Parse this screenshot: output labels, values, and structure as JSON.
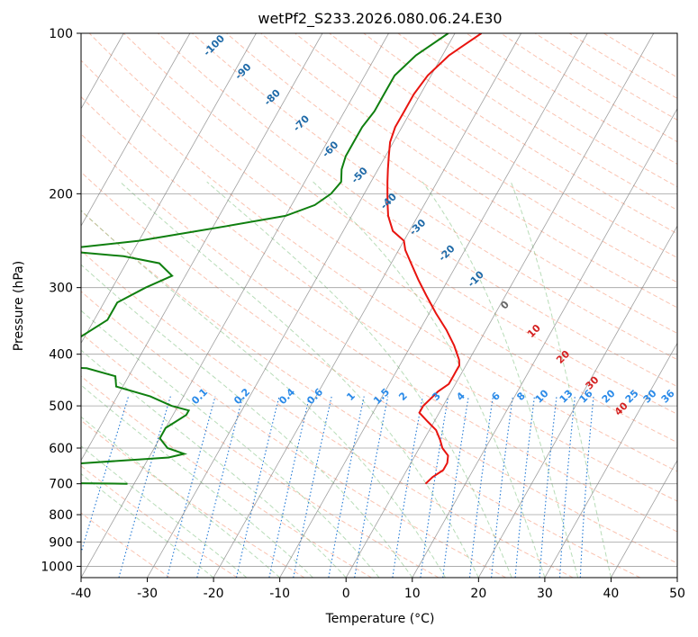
{
  "chart_data": {
    "type": "line",
    "subtype": "skew-t log-p sounding",
    "title": "wetPf2_S233.2026.080.06.24.E30",
    "xlabel": "Temperature (°C)",
    "ylabel": "Pressure (hPa)",
    "xlim": [
      -40,
      50
    ],
    "ylim": [
      1050,
      100
    ],
    "y_scale": "log",
    "grid": true,
    "x_ticks": [
      -40,
      -30,
      -20,
      -10,
      0,
      10,
      20,
      30,
      40,
      50
    ],
    "y_ticks": [
      1000,
      900,
      800,
      700,
      600,
      500,
      400,
      300,
      200,
      100
    ],
    "series": [
      {
        "role": "temperature",
        "color": "#e8140f",
        "points": [
          [
            -26,
            100
          ],
          [
            -29,
            110
          ],
          [
            -30.5,
            120
          ],
          [
            -31,
            130
          ],
          [
            -31,
            140
          ],
          [
            -31,
            150
          ],
          [
            -30.5,
            160
          ],
          [
            -29.5,
            170
          ],
          [
            -28.5,
            180
          ],
          [
            -27.5,
            190
          ],
          [
            -26.5,
            200
          ],
          [
            -25.5,
            210
          ],
          [
            -24.5,
            220
          ],
          [
            -22.5,
            235
          ],
          [
            -20,
            245
          ],
          [
            -19,
            255
          ],
          [
            -17,
            270
          ],
          [
            -14.5,
            290
          ],
          [
            -12,
            310
          ],
          [
            -9,
            335
          ],
          [
            -6,
            360
          ],
          [
            -3.5,
            385
          ],
          [
            -1.5,
            410
          ],
          [
            -1,
            420
          ],
          [
            -1,
            430
          ],
          [
            -1,
            440
          ],
          [
            -1,
            455
          ],
          [
            -2,
            470
          ],
          [
            -2.5,
            485
          ],
          [
            -3,
            500
          ],
          [
            -3,
            515
          ],
          [
            -1,
            535
          ],
          [
            1,
            555
          ],
          [
            2.5,
            580
          ],
          [
            3.5,
            600
          ],
          [
            5,
            620
          ],
          [
            5.5,
            640
          ],
          [
            5.5,
            660
          ],
          [
            4.5,
            680
          ],
          [
            4,
            700
          ]
        ]
      },
      {
        "role": "dewpoint",
        "color": "#0f7f0f",
        "points": [
          [
            -31,
            100
          ],
          [
            -34,
            110
          ],
          [
            -35.5,
            120
          ],
          [
            -35.5,
            130
          ],
          [
            -35.5,
            140
          ],
          [
            -36,
            150
          ],
          [
            -36,
            160
          ],
          [
            -36,
            170
          ],
          [
            -35.5,
            180
          ],
          [
            -34.5,
            190
          ],
          [
            -35,
            200
          ],
          [
            -36.5,
            210
          ],
          [
            -40,
            220
          ],
          [
            -48,
            230
          ],
          [
            -60,
            245
          ],
          [
            -72,
            255
          ],
          [
            -61,
            262
          ],
          [
            -55,
            270
          ],
          [
            -52,
            285
          ],
          [
            -55,
            300
          ],
          [
            -58,
            320
          ],
          [
            -58,
            345
          ],
          [
            -61,
            375
          ],
          [
            -70,
            390
          ],
          [
            -99,
            400
          ],
          [
            -108,
            405
          ],
          [
            -103,
            410
          ],
          [
            -72,
            415
          ],
          [
            -57,
            425
          ],
          [
            -52,
            440
          ],
          [
            -51,
            460
          ],
          [
            -45,
            480
          ],
          [
            -41,
            500
          ],
          [
            -38,
            510
          ],
          [
            -38,
            520
          ],
          [
            -39,
            535
          ],
          [
            -40,
            550
          ],
          [
            -40,
            575
          ],
          [
            -38,
            600
          ],
          [
            -35,
            615
          ],
          [
            -37,
            625
          ],
          [
            -53,
            645
          ],
          [
            -69,
            670
          ],
          [
            -77,
            680
          ],
          [
            -79,
            690
          ],
          [
            -65,
            695
          ],
          [
            -41,
            700
          ]
        ]
      }
    ],
    "dry_adiabat_labels": [
      "-100",
      "-90",
      "-80",
      "-70",
      "-60",
      "-50",
      "-40",
      "-30",
      "-20",
      "-10",
      "0",
      "10",
      "20",
      "30",
      "40"
    ],
    "mixing_ratio_labels": [
      "0.1",
      "0.2",
      "0.4",
      "0.6",
      "1",
      "1.5",
      "2",
      "3",
      "4",
      "6",
      "8",
      "10",
      "13",
      "16",
      "20",
      "25",
      "30",
      "36"
    ]
  },
  "colors": {
    "dry_adiabats": "#f47a53",
    "moist_adiabats": "#7dbf7d",
    "mixing_ratios": "#1f77d4",
    "isotherms": "#808080",
    "dry_label": "#1f6aa8",
    "moist_label_neg": "#666666",
    "moist_label_pos": "#d42020",
    "mixing_label": "#2a8ae8"
  }
}
